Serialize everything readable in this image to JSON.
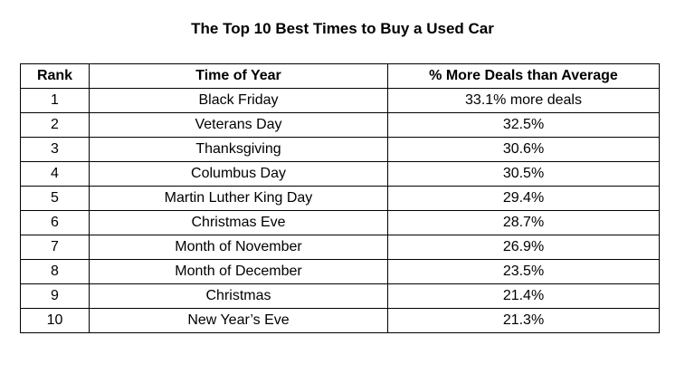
{
  "title": "The Top 10 Best Times to Buy a Used Car",
  "table": {
    "headers": [
      "Rank",
      "Time of Year",
      "% More Deals than Average"
    ],
    "rows": [
      [
        "1",
        "Black Friday",
        "33.1% more deals"
      ],
      [
        "2",
        "Veterans Day",
        "32.5%"
      ],
      [
        "3",
        "Thanksgiving",
        "30.6%"
      ],
      [
        "4",
        "Columbus Day",
        "30.5%"
      ],
      [
        "5",
        "Martin Luther King Day",
        "29.4%"
      ],
      [
        "6",
        "Christmas Eve",
        "28.7%"
      ],
      [
        "7",
        "Month of November",
        "26.9%"
      ],
      [
        "8",
        "Month of December",
        "23.5%"
      ],
      [
        "9",
        "Christmas",
        "21.4%"
      ],
      [
        "10",
        "New Year’s Eve",
        "21.3%"
      ]
    ]
  }
}
